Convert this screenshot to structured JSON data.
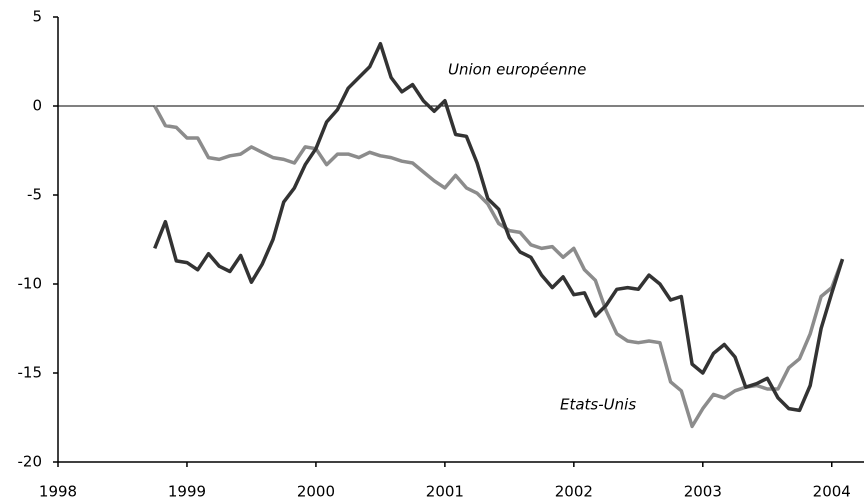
{
  "chart_data": {
    "type": "line",
    "x": [
      1998.75,
      1998.833,
      1998.917,
      1999,
      1999.083,
      1999.167,
      1999.25,
      1999.333,
      1999.417,
      1999.5,
      1999.583,
      1999.667,
      1999.75,
      1999.833,
      1999.917,
      2000,
      2000.083,
      2000.167,
      2000.25,
      2000.333,
      2000.417,
      2000.5,
      2000.583,
      2000.667,
      2000.75,
      2000.833,
      2000.917,
      2001,
      2001.083,
      2001.167,
      2001.25,
      2001.333,
      2001.417,
      2001.5,
      2001.583,
      2001.667,
      2001.75,
      2001.833,
      2001.917,
      2002,
      2002.083,
      2002.167,
      2002.25,
      2002.333,
      2002.417,
      2002.5,
      2002.583,
      2002.667,
      2002.75,
      2002.833,
      2002.917,
      2003,
      2003.083,
      2003.167,
      2003.25,
      2003.333,
      2003.417,
      2003.5,
      2003.583,
      2003.667,
      2003.75,
      2003.833,
      2003.917,
      2004,
      2004.083
    ],
    "series": [
      {
        "name": "Union européenne",
        "color": "#333333",
        "values": [
          -8,
          -6.5,
          -8.7,
          -8.8,
          -9.2,
          -8.3,
          -9.0,
          -9.3,
          -8.4,
          -9.9,
          -8.9,
          -7.5,
          -5.4,
          -4.6,
          -3.3,
          -2.4,
          -0.9,
          -0.2,
          1.0,
          1.6,
          2.2,
          3.5,
          1.6,
          0.8,
          1.2,
          0.3,
          -0.3,
          0.3,
          -1.6,
          -1.7,
          -3.2,
          -5.2,
          -5.8,
          -7.4,
          -8.2,
          -8.5,
          -9.5,
          -10.2,
          -9.6,
          -10.6,
          -10.5,
          -11.8,
          -11.2,
          -10.3,
          -10.2,
          -10.3,
          -9.5,
          -10.0,
          -10.9,
          -10.7,
          -14.5,
          -15.0,
          -13.9,
          -13.4,
          -14.1,
          -15.8,
          -15.6,
          -15.3,
          -16.4,
          -17.0,
          -17.1,
          -15.7,
          -12.5,
          -10.5,
          -8.6
        ]
      },
      {
        "name": "Etats-Unis",
        "color": "#8c8c8c",
        "values": [
          0,
          -1.1,
          -1.2,
          -1.8,
          -1.8,
          -2.9,
          -3.0,
          -2.8,
          -2.7,
          -2.3,
          -2.6,
          -2.9,
          -3.0,
          -3.2,
          -2.3,
          -2.4,
          -3.3,
          -2.7,
          -2.7,
          -2.9,
          -2.6,
          -2.8,
          -2.9,
          -3.1,
          -3.2,
          -3.7,
          -4.2,
          -4.6,
          -3.9,
          -4.6,
          -4.9,
          -5.5,
          -6.6,
          -7.0,
          -7.1,
          -7.8,
          -8.0,
          -7.9,
          -8.5,
          -8.0,
          -9.2,
          -9.8,
          -11.5,
          -12.8,
          -13.2,
          -13.3,
          -13.2,
          -13.3,
          -15.5,
          -16.0,
          -18.0,
          -17.0,
          -16.2,
          -16.4,
          -16.0,
          -15.8,
          -15.7,
          -15.9,
          -15.9,
          -14.7,
          -14.2,
          -12.8,
          -10.7,
          -10.2,
          -8.6
        ]
      }
    ],
    "xlim": [
      1998,
      2004.25
    ],
    "xticks": [
      1998,
      1999,
      2000,
      2001,
      2002,
      2003,
      2004
    ],
    "ylim": [
      -20,
      5
    ],
    "yticks": [
      -20,
      -15,
      -10,
      -5,
      0,
      5
    ]
  }
}
